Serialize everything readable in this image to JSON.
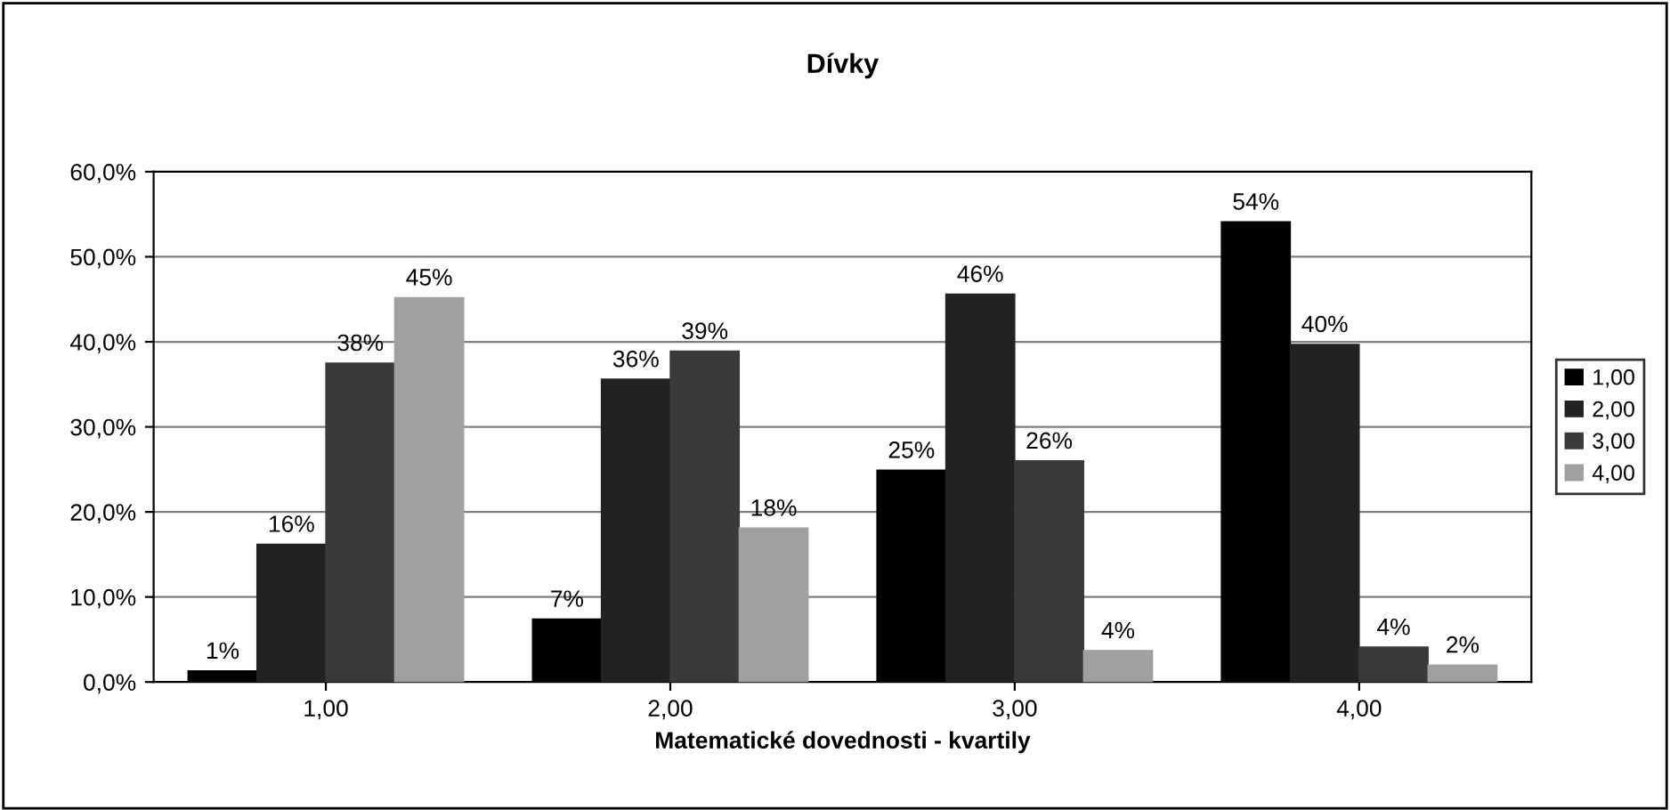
{
  "chart_data": {
    "type": "bar",
    "title": "Dívky",
    "xlabel": "Matematické dovednosti - kvartily",
    "categories": [
      "1,00",
      "2,00",
      "3,00",
      "4,00"
    ],
    "series": [
      {
        "name": "1,00",
        "color": "#000000",
        "values": [
          1.3,
          7.4,
          24.9,
          54.1
        ],
        "value_labels": [
          "1%",
          "7%",
          "25%",
          "54%"
        ]
      },
      {
        "name": "2,00",
        "color": "#222222",
        "values": [
          16.2,
          35.6,
          45.6,
          39.7
        ],
        "value_labels": [
          "16%",
          "36%",
          "46%",
          "40%"
        ]
      },
      {
        "name": "3,00",
        "color": "#3a3a3a",
        "values": [
          37.5,
          38.9,
          26.0,
          4.1
        ],
        "value_labels": [
          "38%",
          "39%",
          "26%",
          "4%"
        ]
      },
      {
        "name": "4,00",
        "color": "#a0a0a0",
        "values": [
          45.2,
          18.1,
          3.7,
          2.0
        ],
        "value_labels": [
          "45%",
          "18%",
          "4%",
          "2%"
        ]
      }
    ],
    "ylim": [
      0,
      60
    ],
    "yticks": [
      {
        "value": 0,
        "label": "0,0%"
      },
      {
        "value": 10,
        "label": "10,0%"
      },
      {
        "value": 20,
        "label": "20,0%"
      },
      {
        "value": 30,
        "label": "30,0%"
      },
      {
        "value": 40,
        "label": "40,0%"
      },
      {
        "value": 50,
        "label": "50,0%"
      },
      {
        "value": 60,
        "label": "60,0%"
      }
    ],
    "grid": "y",
    "legend": "right"
  }
}
